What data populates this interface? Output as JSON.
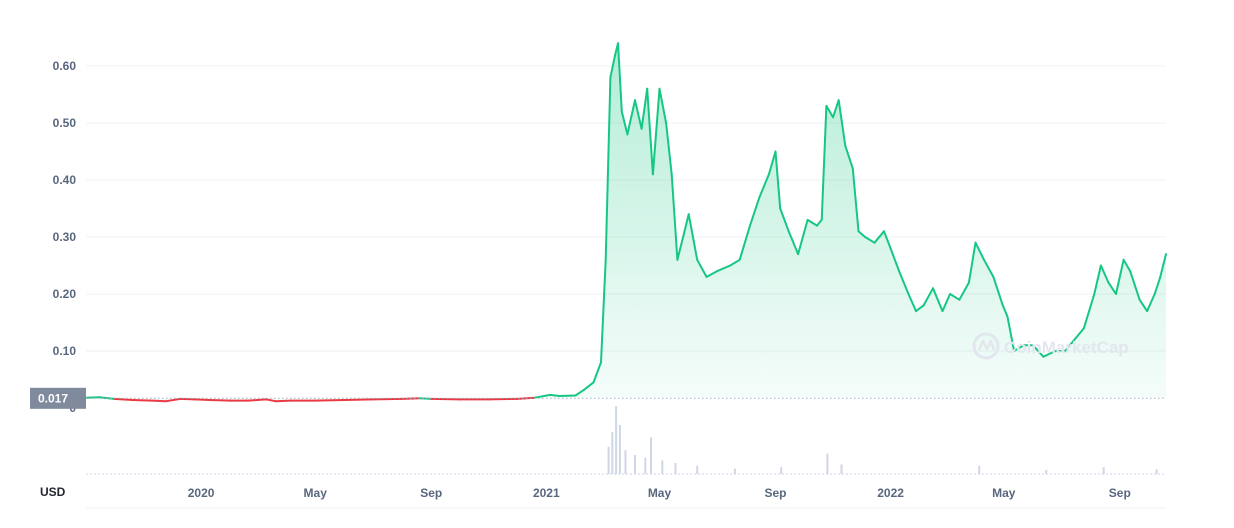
{
  "chart_data": {
    "type": "area",
    "currency_label": "USD",
    "watermark": "CoinMarketCap",
    "baseline": {
      "label": "0.017",
      "value": 0.017
    },
    "y_ticks": [
      "0.60",
      "0.50",
      "0.40",
      "0.30",
      "0.20",
      "0.10",
      "0"
    ],
    "y_tick_values": [
      0.6,
      0.5,
      0.4,
      0.3,
      0.2,
      0.1,
      0
    ],
    "ylim": [
      0,
      0.6
    ],
    "x_ticks": [
      "2020",
      "May",
      "Sep",
      "2021",
      "May",
      "Sep",
      "2022",
      "May",
      "Sep"
    ],
    "x_tick_dates": [
      "2020-01-01",
      "2020-05-01",
      "2020-09-01",
      "2021-01-01",
      "2021-05-01",
      "2021-09-01",
      "2022-01-01",
      "2022-05-01",
      "2022-09-01"
    ],
    "x_year_ticks": [
      "2020",
      "2021",
      "2022"
    ],
    "xlim": [
      "2019-09-01",
      "2022-10-20"
    ],
    "colors": {
      "up": "#16c784",
      "down": "#ea3943",
      "fill": "#16c784",
      "volume": "#cfd6e4"
    },
    "series": [
      {
        "values": [
          [
            "2019-09-01",
            0.018
          ],
          [
            "2019-09-15",
            0.019
          ],
          [
            "2019-10-01",
            0.016
          ],
          [
            "2019-10-20",
            0.014
          ],
          [
            "2019-11-10",
            0.013
          ],
          [
            "2019-11-25",
            0.012
          ],
          [
            "2019-12-10",
            0.016
          ],
          [
            "2019-12-25",
            0.015
          ],
          [
            "2020-01-10",
            0.014
          ],
          [
            "2020-02-01",
            0.013
          ],
          [
            "2020-02-20",
            0.013
          ],
          [
            "2020-03-10",
            0.015
          ],
          [
            "2020-03-20",
            0.012
          ],
          [
            "2020-04-05",
            0.013
          ],
          [
            "2020-05-01",
            0.013
          ],
          [
            "2020-06-01",
            0.014
          ],
          [
            "2020-07-01",
            0.015
          ],
          [
            "2020-08-01",
            0.016
          ],
          [
            "2020-08-20",
            0.017
          ],
          [
            "2020-09-01",
            0.016
          ],
          [
            "2020-10-01",
            0.015
          ],
          [
            "2020-11-01",
            0.015
          ],
          [
            "2020-12-01",
            0.016
          ],
          [
            "2020-12-20",
            0.018
          ],
          [
            "2021-01-05",
            0.023
          ],
          [
            "2021-01-15",
            0.021
          ],
          [
            "2021-02-01",
            0.022
          ],
          [
            "2021-02-10",
            0.032
          ],
          [
            "2021-02-20",
            0.045
          ],
          [
            "2021-02-28",
            0.08
          ],
          [
            "2021-03-05",
            0.26
          ],
          [
            "2021-03-10",
            0.58
          ],
          [
            "2021-03-15",
            0.62
          ],
          [
            "2021-03-18",
            0.64
          ],
          [
            "2021-03-22",
            0.52
          ],
          [
            "2021-03-28",
            0.48
          ],
          [
            "2021-04-05",
            0.54
          ],
          [
            "2021-04-12",
            0.49
          ],
          [
            "2021-04-18",
            0.56
          ],
          [
            "2021-04-24",
            0.41
          ],
          [
            "2021-05-01",
            0.56
          ],
          [
            "2021-05-08",
            0.5
          ],
          [
            "2021-05-14",
            0.41
          ],
          [
            "2021-05-20",
            0.26
          ],
          [
            "2021-05-26",
            0.3
          ],
          [
            "2021-06-01",
            0.34
          ],
          [
            "2021-06-10",
            0.26
          ],
          [
            "2021-06-20",
            0.23
          ],
          [
            "2021-07-01",
            0.24
          ],
          [
            "2021-07-15",
            0.25
          ],
          [
            "2021-07-25",
            0.26
          ],
          [
            "2021-08-05",
            0.32
          ],
          [
            "2021-08-15",
            0.37
          ],
          [
            "2021-08-25",
            0.41
          ],
          [
            "2021-09-01",
            0.45
          ],
          [
            "2021-09-06",
            0.35
          ],
          [
            "2021-09-15",
            0.31
          ],
          [
            "2021-09-25",
            0.27
          ],
          [
            "2021-10-05",
            0.33
          ],
          [
            "2021-10-15",
            0.32
          ],
          [
            "2021-10-20",
            0.33
          ],
          [
            "2021-10-25",
            0.53
          ],
          [
            "2021-11-01",
            0.51
          ],
          [
            "2021-11-07",
            0.54
          ],
          [
            "2021-11-14",
            0.46
          ],
          [
            "2021-11-22",
            0.42
          ],
          [
            "2021-11-28",
            0.31
          ],
          [
            "2021-12-05",
            0.3
          ],
          [
            "2021-12-15",
            0.29
          ],
          [
            "2021-12-25",
            0.31
          ],
          [
            "2022-01-01",
            0.28
          ],
          [
            "2022-01-10",
            0.24
          ],
          [
            "2022-01-20",
            0.2
          ],
          [
            "2022-01-28",
            0.17
          ],
          [
            "2022-02-05",
            0.18
          ],
          [
            "2022-02-15",
            0.21
          ],
          [
            "2022-02-25",
            0.17
          ],
          [
            "2022-03-05",
            0.2
          ],
          [
            "2022-03-15",
            0.19
          ],
          [
            "2022-03-25",
            0.22
          ],
          [
            "2022-04-01",
            0.29
          ],
          [
            "2022-04-10",
            0.26
          ],
          [
            "2022-04-20",
            0.23
          ],
          [
            "2022-04-30",
            0.18
          ],
          [
            "2022-05-05",
            0.16
          ],
          [
            "2022-05-12",
            0.1
          ],
          [
            "2022-05-22",
            0.11
          ],
          [
            "2022-06-01",
            0.11
          ],
          [
            "2022-06-12",
            0.09
          ],
          [
            "2022-06-25",
            0.1
          ],
          [
            "2022-07-05",
            0.1
          ],
          [
            "2022-07-15",
            0.12
          ],
          [
            "2022-07-25",
            0.14
          ],
          [
            "2022-08-05",
            0.2
          ],
          [
            "2022-08-12",
            0.25
          ],
          [
            "2022-08-20",
            0.22
          ],
          [
            "2022-08-28",
            0.2
          ],
          [
            "2022-09-05",
            0.26
          ],
          [
            "2022-09-12",
            0.24
          ],
          [
            "2022-09-22",
            0.19
          ],
          [
            "2022-09-30",
            0.17
          ],
          [
            "2022-10-08",
            0.2
          ],
          [
            "2022-10-14",
            0.23
          ],
          [
            "2022-10-20",
            0.27
          ]
        ]
      }
    ],
    "volume": [
      [
        "2021-03-08",
        0.4
      ],
      [
        "2021-03-12",
        0.62
      ],
      [
        "2021-03-16",
        1.0
      ],
      [
        "2021-03-20",
        0.72
      ],
      [
        "2021-03-26",
        0.35
      ],
      [
        "2021-04-05",
        0.28
      ],
      [
        "2021-04-16",
        0.24
      ],
      [
        "2021-04-22",
        0.54
      ],
      [
        "2021-05-04",
        0.2
      ],
      [
        "2021-05-18",
        0.16
      ],
      [
        "2021-06-10",
        0.12
      ],
      [
        "2021-07-20",
        0.08
      ],
      [
        "2021-09-07",
        0.1
      ],
      [
        "2021-10-26",
        0.3
      ],
      [
        "2021-11-10",
        0.14
      ],
      [
        "2022-04-05",
        0.12
      ],
      [
        "2022-06-15",
        0.06
      ],
      [
        "2022-08-15",
        0.1
      ],
      [
        "2022-10-10",
        0.07
      ]
    ]
  }
}
